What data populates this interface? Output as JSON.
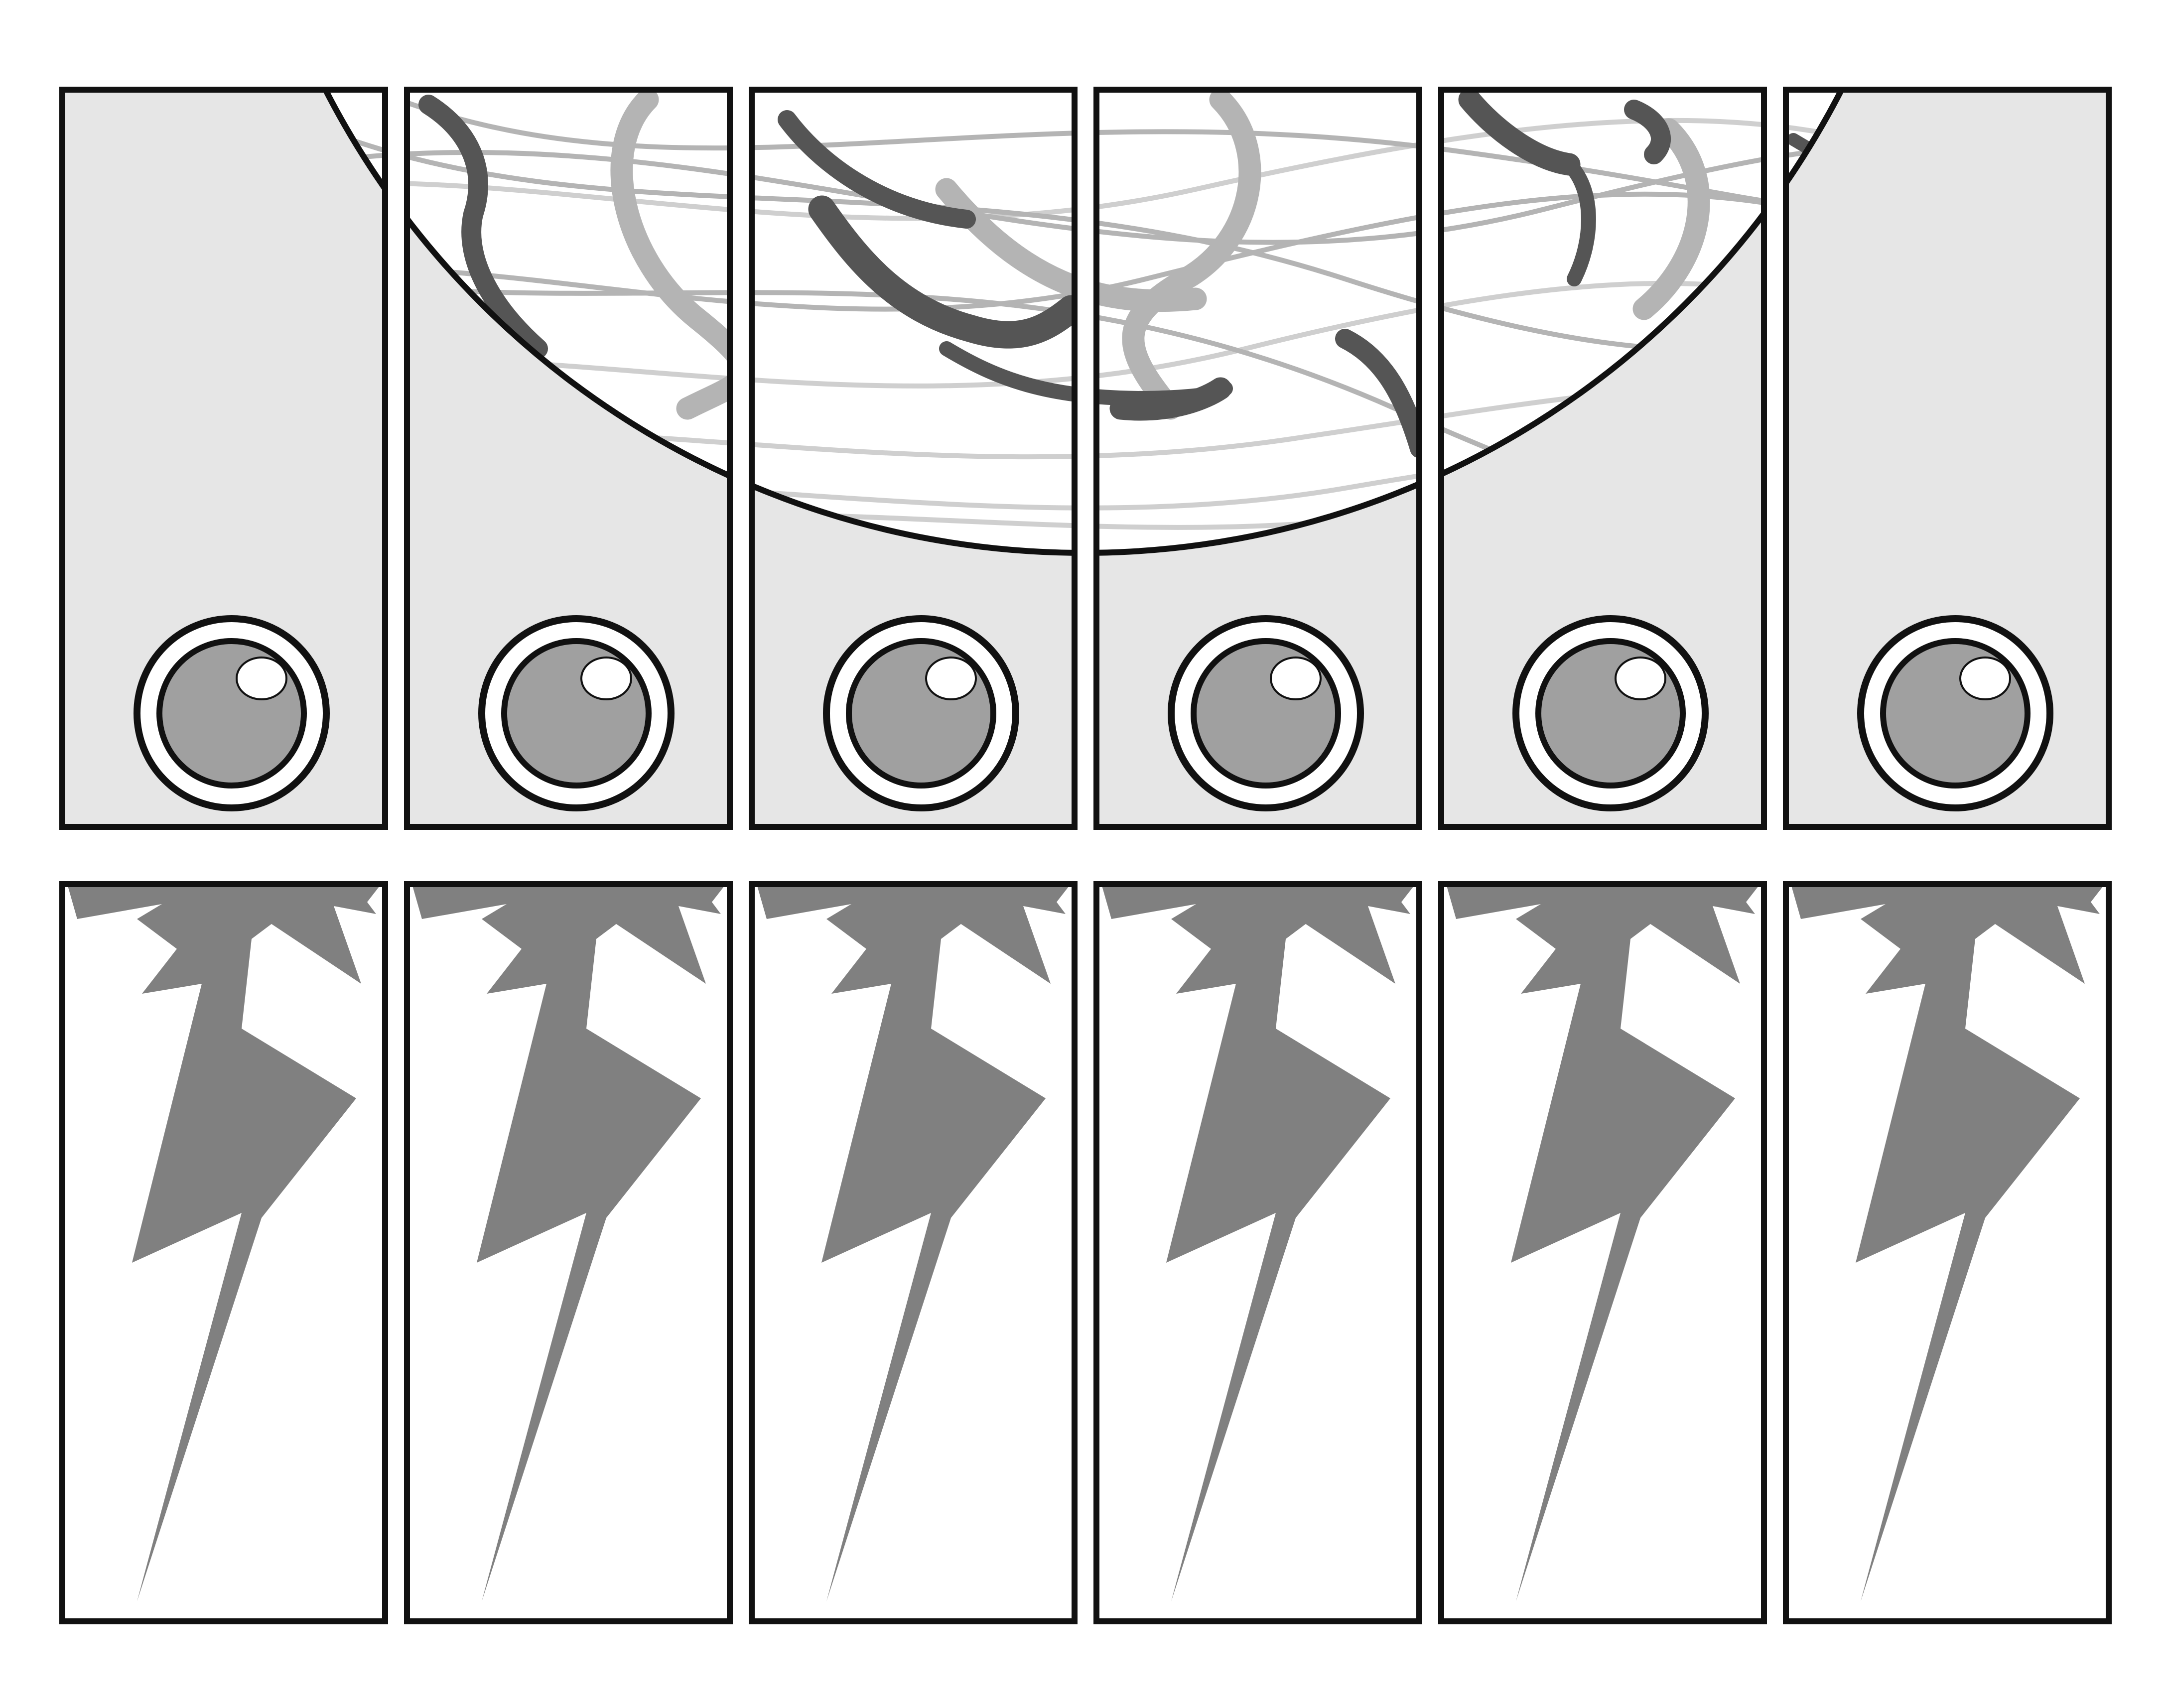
{
  "sheet": {
    "background": "#ffffff",
    "panel_fill": "#e6e6e6",
    "border_color": "#111111",
    "ink_dark": "#555555",
    "ink_mid": "#7f7f7f",
    "ink_light": "#b4b4b4",
    "ink_faint": "#cfcfcf",
    "button_fill": "#a0a0a0",
    "bolt_fill": "#808080",
    "top_row": {
      "label_count": 6,
      "artwork": "circular-brush-swirl-emblem",
      "finger_hole_icon": "finger-hole-icon"
    },
    "bottom_row": {
      "label_count": 6,
      "icon": "lightning-bolt-icon"
    }
  }
}
